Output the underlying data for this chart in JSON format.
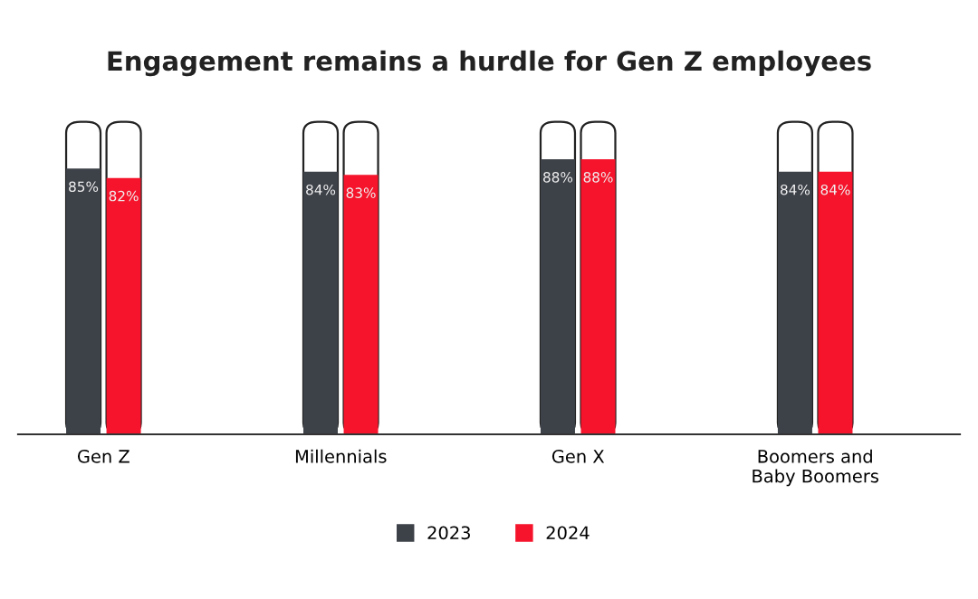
{
  "chart_data": {
    "type": "bar",
    "title": "Engagement remains a hurdle for Gen Z employees",
    "categories": [
      "Gen Z",
      "Millennials",
      "Gen X",
      "Boomers and\nBaby Boomers"
    ],
    "ylim": [
      0,
      100
    ],
    "tick_labels": "x",
    "legend": "bottom",
    "grid": false,
    "series": [
      {
        "name": "2023",
        "color": "#3d4148",
        "values": [
          85,
          84,
          88,
          84
        ],
        "value_labels": [
          "85%",
          "84%",
          "88%",
          "84%"
        ]
      },
      {
        "name": "2024",
        "color": "#f5142b",
        "values": [
          82,
          83,
          88,
          84
        ],
        "value_labels": [
          "82%",
          "83%",
          "88%",
          "84%"
        ]
      }
    ]
  }
}
